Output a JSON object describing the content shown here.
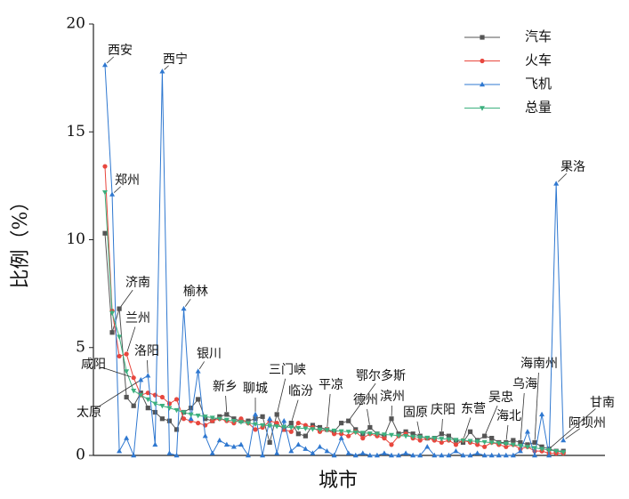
{
  "chart_data": {
    "type": "line",
    "x_label": "城市",
    "y_label": "比例（%）",
    "ylim": [
      0,
      20
    ],
    "yticks": [
      0,
      5,
      10,
      15,
      20
    ],
    "legend": "upper right",
    "categories": [
      "西安",
      "郑州",
      "济南",
      "兰州",
      "咸阳",
      "太原",
      "洛阳",
      null,
      "西宁",
      null,
      null,
      "榆林",
      null,
      "银川",
      null,
      null,
      null,
      "新乡",
      null,
      null,
      null,
      "聊城",
      null,
      null,
      "三门峡",
      null,
      "临汾",
      null,
      null,
      null,
      null,
      "平凉",
      null,
      null,
      "鄂尔多斯",
      null,
      null,
      "德州",
      null,
      null,
      "滨州",
      null,
      null,
      null,
      "固原",
      null,
      null,
      "庆阳",
      null,
      null,
      "东营",
      null,
      null,
      "吴忠",
      null,
      null,
      "海北",
      null,
      "乌海",
      null,
      "海南州",
      null,
      "甘南",
      "果洛",
      "阿坝州"
    ],
    "series": [
      {
        "name": "汽车",
        "color": "#555555",
        "marker": "square",
        "values": [
          10.3,
          5.7,
          6.8,
          2.7,
          2.3,
          2.9,
          2.2,
          2.0,
          1.7,
          1.6,
          1.2,
          2.0,
          2.2,
          2.6,
          1.7,
          1.6,
          1.8,
          1.9,
          1.7,
          1.6,
          1.6,
          1.7,
          1.8,
          0.6,
          1.9,
          1.2,
          1.5,
          1.0,
          0.9,
          1.4,
          1.3,
          1.2,
          1.1,
          1.5,
          1.6,
          1.2,
          1.0,
          1.3,
          1.0,
          0.9,
          1.7,
          1.0,
          1.1,
          1.0,
          0.9,
          0.8,
          0.8,
          1.0,
          0.9,
          0.7,
          0.6,
          1.1,
          0.7,
          0.9,
          0.8,
          0.6,
          0.6,
          0.7,
          0.6,
          0.5,
          0.6,
          0.4,
          0.3,
          0.2,
          0.2
        ]
      },
      {
        "name": "火车",
        "color": "#e8473e",
        "marker": "circle",
        "values": [
          13.4,
          6.7,
          4.6,
          4.7,
          3.6,
          2.8,
          2.9,
          2.8,
          2.7,
          2.4,
          2.6,
          1.7,
          1.6,
          1.5,
          1.4,
          1.6,
          1.7,
          1.6,
          1.5,
          1.7,
          1.5,
          1.2,
          1.3,
          1.6,
          1.5,
          1.2,
          1.1,
          1.5,
          1.4,
          1.3,
          1.1,
          1.2,
          1.0,
          1.0,
          0.9,
          1.1,
          0.8,
          1.0,
          0.9,
          0.8,
          0.5,
          0.9,
          1.0,
          0.8,
          0.7,
          0.8,
          0.7,
          0.6,
          0.7,
          0.5,
          0.7,
          0.6,
          0.5,
          0.4,
          0.6,
          0.5,
          0.4,
          0.5,
          0.3,
          0.4,
          0.2,
          0.2,
          0.1,
          0.1,
          0.1
        ]
      },
      {
        "name": "飞机",
        "color": "#2f78d0",
        "marker": "triangle-up",
        "values": [
          18.1,
          12.1,
          0.2,
          0.8,
          0.0,
          3.5,
          3.7,
          0.5,
          17.8,
          0.1,
          0.0,
          6.8,
          1.7,
          3.9,
          0.9,
          0.1,
          0.7,
          0.5,
          0.4,
          0.5,
          0.0,
          1.9,
          0.0,
          1.7,
          0.1,
          1.6,
          0.2,
          0.5,
          0.3,
          0.1,
          0.4,
          0.2,
          0.0,
          0.8,
          0.1,
          0.0,
          0.1,
          0.0,
          0.0,
          0.1,
          0.0,
          0.0,
          0.1,
          0.0,
          0.0,
          0.4,
          0.0,
          0.0,
          0.0,
          0.2,
          0.0,
          0.0,
          0.1,
          0.0,
          0.0,
          0.0,
          0.0,
          0.0,
          0.2,
          1.1,
          0.0,
          1.9,
          0.0,
          12.6,
          0.7
        ]
      },
      {
        "name": "总量",
        "color": "#3db07f",
        "marker": "triangle-down",
        "values": [
          12.2,
          6.6,
          5.5,
          3.9,
          3.0,
          2.8,
          2.6,
          2.4,
          2.3,
          2.2,
          2.1,
          2.0,
          1.9,
          1.85,
          1.8,
          1.75,
          1.7,
          1.65,
          1.6,
          1.55,
          1.5,
          1.45,
          1.4,
          1.38,
          1.35,
          1.32,
          1.3,
          1.27,
          1.25,
          1.22,
          1.2,
          1.18,
          1.15,
          1.12,
          1.1,
          1.07,
          1.05,
          1.02,
          1.0,
          0.97,
          0.95,
          0.92,
          0.9,
          0.87,
          0.85,
          0.82,
          0.8,
          0.77,
          0.75,
          0.72,
          0.7,
          0.67,
          0.65,
          0.62,
          0.6,
          0.57,
          0.55,
          0.5,
          0.45,
          0.4,
          0.35,
          0.3,
          0.25,
          0.2,
          0.15
        ]
      }
    ]
  }
}
